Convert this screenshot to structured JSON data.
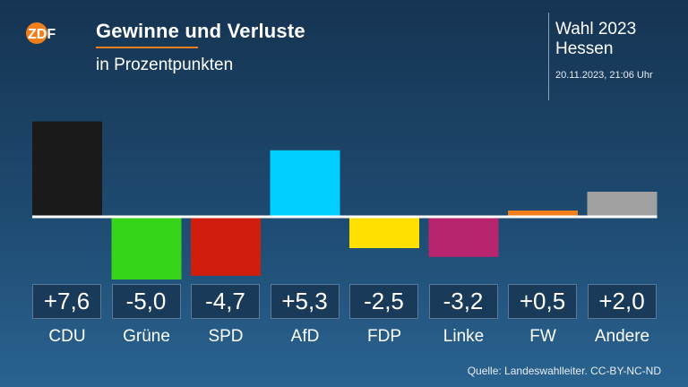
{
  "header": {
    "title": "Gewinne und Verluste",
    "subtitle": "in Prozentpunkten",
    "logo_text": "ZDF",
    "election_title": "Wahl 2023",
    "election_region": "Hessen",
    "timestamp": "20.11.2023, 21:06 Uhr"
  },
  "footer": {
    "source": "Quelle: Landeswahlleiter. CC-BY-NC-ND"
  },
  "colors": {
    "accent": "#f07f1b",
    "CDU": "#1a1a1a",
    "Grüne": "#36d51a",
    "SPD": "#d01d0d",
    "AfD": "#00d0ff",
    "FDP": "#ffe000",
    "Linke": "#b8246e",
    "FW": "#f07f1b",
    "Andere": "#a0a0a0"
  },
  "chart_data": {
    "type": "bar",
    "title": "Gewinne und Verluste",
    "subtitle": "in Prozentpunkten",
    "categories": [
      "CDU",
      "Grüne",
      "SPD",
      "AfD",
      "FDP",
      "Linke",
      "FW",
      "Andere"
    ],
    "values": [
      7.6,
      -5.0,
      -4.7,
      5.3,
      -2.5,
      -3.2,
      0.5,
      2.0
    ],
    "value_labels": [
      "+7,6",
      "-5,0",
      "-4,7",
      "+5,3",
      "-2,5",
      "-3,2",
      "+0,5",
      "+2,0"
    ],
    "colors": [
      "#1a1a1a",
      "#36d51a",
      "#d01d0d",
      "#00d0ff",
      "#ffe000",
      "#b8246e",
      "#f07f1b",
      "#a0a0a0"
    ],
    "ylim": [
      -5.0,
      7.6
    ],
    "grid": false,
    "legend": "none"
  }
}
